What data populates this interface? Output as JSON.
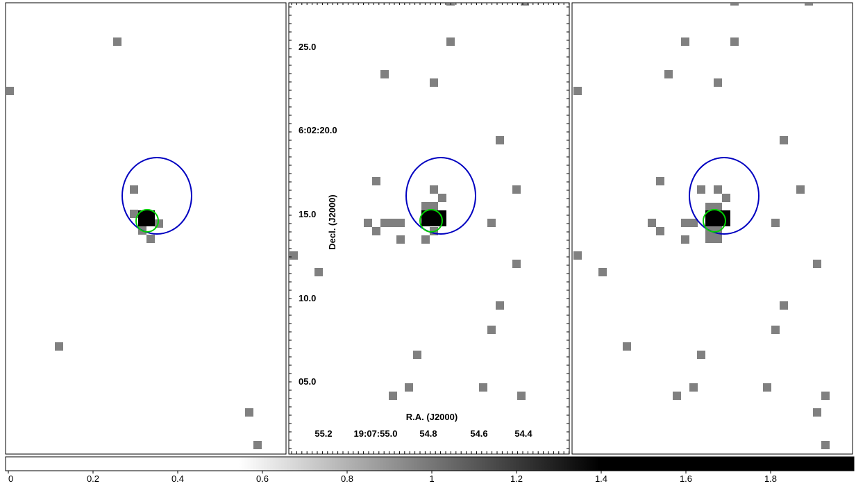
{
  "axes": {
    "y_label": "Decl. (J2000)",
    "x_label": "R.A. (J2000)",
    "y_ticks": [
      "25.0",
      "6:02:20.0",
      "15.0",
      "10.0",
      "05.0"
    ],
    "x_ticks": [
      "55.2",
      "19:07:55.0",
      "54.8",
      "54.6",
      "54.4"
    ]
  },
  "colorbar": {
    "range": [
      0,
      2
    ],
    "ticks": [
      0,
      0.2,
      0.4,
      0.6,
      0.8,
      1,
      1.2,
      1.4,
      1.6,
      1.8
    ]
  }
}
